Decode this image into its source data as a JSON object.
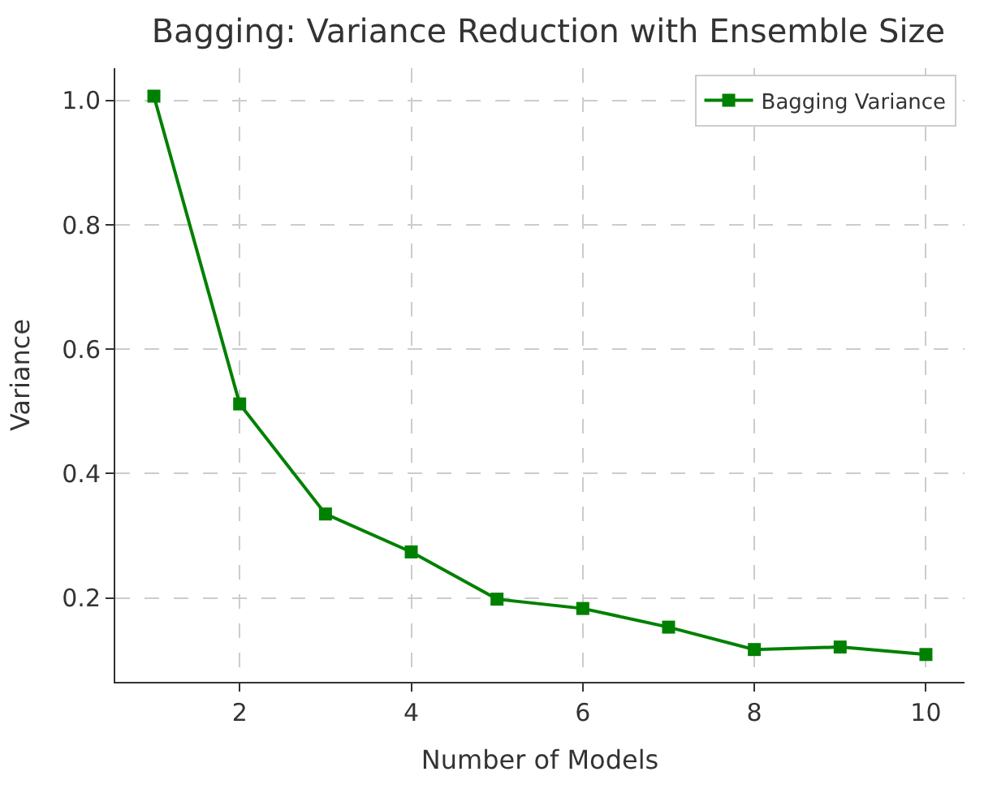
{
  "chart_data": {
    "type": "line",
    "title": "Bagging: Variance Reduction with Ensemble Size",
    "xlabel": "Number of Models",
    "ylabel": "Variance",
    "x": [
      1,
      2,
      3,
      4,
      5,
      6,
      7,
      8,
      9,
      10
    ],
    "series": [
      {
        "name": "Bagging Variance",
        "color": "#008000",
        "values": [
          1.007,
          0.512,
          0.335,
          0.274,
          0.198,
          0.183,
          0.153,
          0.117,
          0.121,
          0.109
        ]
      }
    ],
    "xlim": [
      0.55,
      10.45
    ],
    "ylim": [
      0.065,
      1.052
    ],
    "xticks": [
      2,
      4,
      6,
      8,
      10
    ],
    "yticks": [
      {
        "value": 0.2,
        "label": "0.2"
      },
      {
        "value": 0.4,
        "label": "0.4"
      },
      {
        "value": 0.6,
        "label": "0.6"
      },
      {
        "value": 0.8,
        "label": "0.8"
      },
      {
        "value": 1.0,
        "label": "1.0"
      }
    ],
    "grid": true,
    "legend": "top right",
    "marker": "square",
    "line_style": "solid"
  }
}
